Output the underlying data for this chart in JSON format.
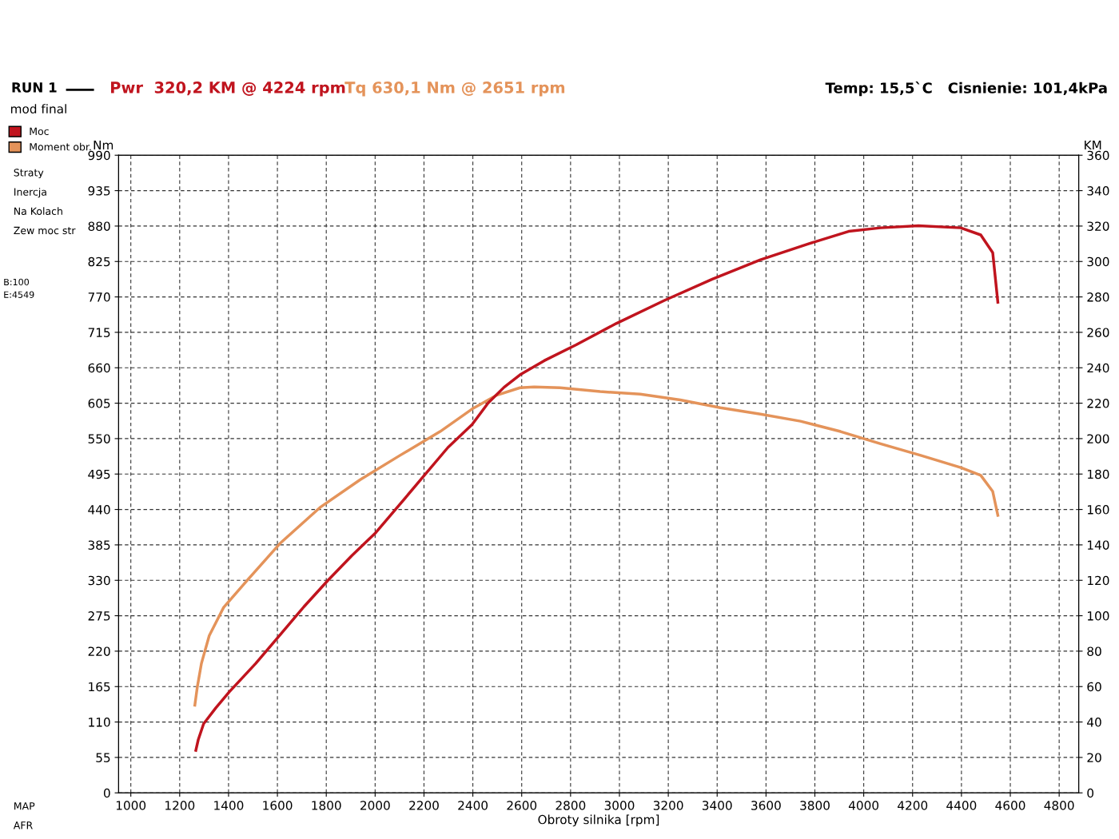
{
  "chart_data": {
    "type": "line",
    "title": "RUN 1",
    "subtitle": "mod final",
    "xlabel": "Obroty silnika [rpm]",
    "ylabel": "Nm",
    "y2label": "KM",
    "annotations": [
      "Pwr  320,2 KM @ 4224 rpm",
      "Tq 630,1 Nm @ 2651 rpm",
      "Temp: 15,5`C   Cisnienie: 101,4kPa",
      "Straty",
      "Inercja",
      "Na Kolach",
      "Zew moc str",
      "B:100",
      "E:4549",
      "MAP",
      "AFR"
    ],
    "series": [
      {
        "name": "Moc",
        "color": "#c0141e",
        "axis": "y2",
        "x": [
          1266,
          1276,
          1298,
          1348,
          1403,
          1511,
          1610,
          1708,
          1807,
          1905,
          2003,
          2102,
          2200,
          2298,
          2397,
          2462,
          2528,
          2593,
          2692,
          2823,
          2987,
          3184,
          3380,
          3577,
          3774,
          3938,
          4069,
          4224,
          4397,
          4479,
          4528,
          4549
        ],
        "values": [
          24,
          30,
          39,
          48,
          57,
          73,
          89,
          105,
          120,
          134,
          147,
          163,
          179,
          195,
          208,
          220,
          229,
          236,
          244,
          253,
          265,
          278,
          290,
          301,
          310,
          317,
          319,
          320.2,
          319,
          315,
          305,
          277
        ]
      },
      {
        "name": "Moment obr.",
        "color": "#e4935a",
        "x": [
          1262,
          1272,
          1289,
          1321,
          1380,
          1479,
          1610,
          1774,
          1938,
          2102,
          2266,
          2397,
          2495,
          2593,
          2651,
          2757,
          2921,
          3085,
          3249,
          3413,
          3577,
          3741,
          3905,
          4069,
          4233,
          4397,
          4479,
          4528,
          4549
        ],
        "values": [
          136,
          164,
          201,
          244,
          288,
          331,
          387,
          443,
          486,
          524,
          561,
          596,
          617,
          629,
          630.1,
          629,
          623,
          619,
          610,
          598,
          588,
          577,
          561,
          542,
          524,
          505,
          493,
          468,
          431
        ]
      }
    ],
    "xlim": [
      950,
      4880
    ],
    "xticks": [
      1000,
      1200,
      1400,
      1600,
      1800,
      2000,
      2200,
      2400,
      2600,
      2800,
      3000,
      3200,
      3400,
      3600,
      3800,
      4000,
      4200,
      4400,
      4600,
      4800
    ],
    "ylim": [
      0,
      990
    ],
    "yticks": [
      0,
      55,
      110,
      165,
      220,
      275,
      330,
      385,
      440,
      495,
      550,
      605,
      660,
      715,
      770,
      825,
      880,
      935,
      990
    ],
    "y2lim": [
      0,
      360
    ],
    "y2ticks": [
      0,
      20,
      40,
      60,
      80,
      100,
      120,
      140,
      160,
      180,
      200,
      220,
      240,
      260,
      280,
      300,
      320,
      340,
      360
    ],
    "grid": true,
    "legend": "left",
    "line_style": "solid",
    "marker": "none"
  }
}
